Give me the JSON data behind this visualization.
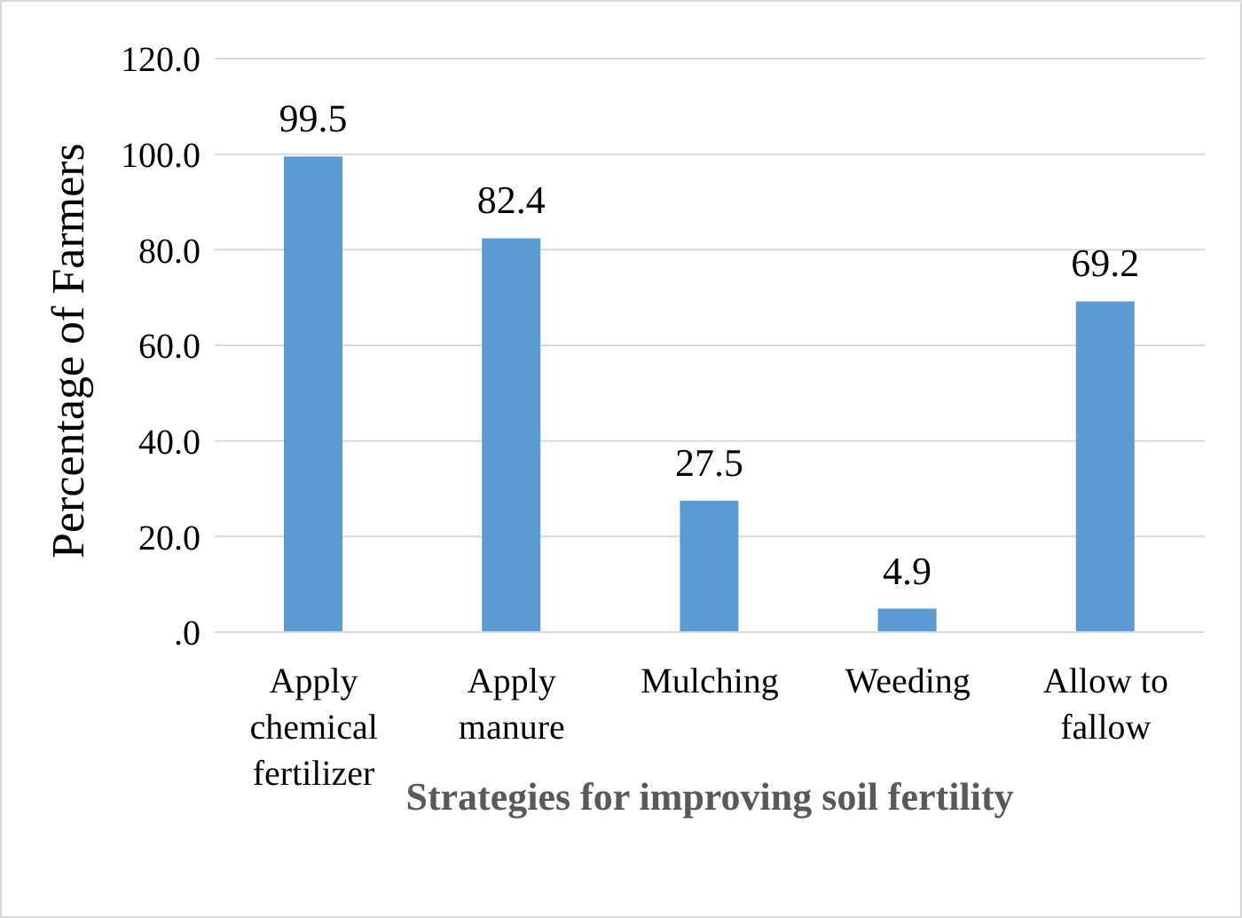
{
  "chart_data": {
    "type": "bar",
    "xlabel": "Strategies for improving soil fertility",
    "ylabel": "Percentage of Farmers",
    "categories": [
      "Apply chemical fertilizer",
      "Apply manure",
      "Mulching",
      "Weeding",
      "Allow to fallow"
    ],
    "values": [
      99.5,
      82.4,
      27.5,
      4.9,
      69.2
    ],
    "color": "#5b9bd5",
    "ylim": [
      0,
      120
    ],
    "yticks": [
      {
        "value": 0,
        "label": ".0"
      },
      {
        "value": 20,
        "label": "20.0"
      },
      {
        "value": 40,
        "label": "40.0"
      },
      {
        "value": 60,
        "label": "60.0"
      },
      {
        "value": 80,
        "label": "80.0"
      },
      {
        "value": 100,
        "label": "100.0"
      },
      {
        "value": 120,
        "label": "120.0"
      }
    ],
    "grid": "y",
    "data_labels": true,
    "legend": false
  }
}
